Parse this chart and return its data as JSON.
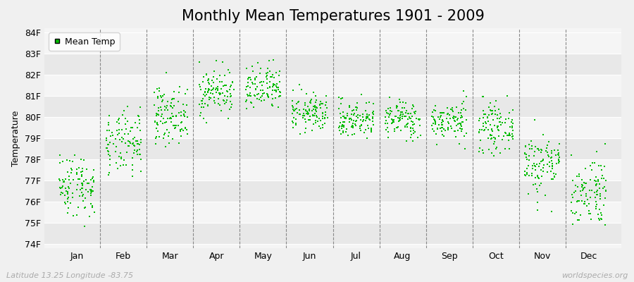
{
  "title": "Monthly Mean Temperatures 1901 - 2009",
  "ylabel": "Temperature",
  "xlabel": "",
  "ytick_labels": [
    "74F",
    "75F",
    "76F",
    "77F",
    "78F",
    "79F",
    "80F",
    "81F",
    "82F",
    "83F",
    "84F"
  ],
  "ytick_values": [
    74,
    75,
    76,
    77,
    78,
    79,
    80,
    81,
    82,
    83,
    84
  ],
  "ylim": [
    73.8,
    84.2
  ],
  "months": [
    "Jan",
    "Feb",
    "Mar",
    "Apr",
    "May",
    "Jun",
    "Jul",
    "Aug",
    "Sep",
    "Oct",
    "Nov",
    "Dec"
  ],
  "month_positions": [
    1,
    2,
    3,
    4,
    5,
    6,
    7,
    8,
    9,
    10,
    11,
    12
  ],
  "xlim": [
    0.3,
    12.7
  ],
  "dot_color": "#00bb00",
  "dot_size": 3,
  "bg_color": "#f0f0f0",
  "plot_bg_light": "#f5f5f5",
  "plot_bg_dark": "#e8e8e8",
  "dashed_line_color": "#888888",
  "legend_label": "Mean Temp",
  "footer_left": "Latitude 13.25 Longitude -83.75",
  "footer_right": "worldspecies.org",
  "title_fontsize": 15,
  "axis_fontsize": 9,
  "footer_fontsize": 8,
  "seed": 42,
  "n_years": 109,
  "monthly_means": [
    76.8,
    78.7,
    80.1,
    81.2,
    81.3,
    80.2,
    79.9,
    79.9,
    79.8,
    79.5,
    77.8,
    76.5
  ],
  "monthly_stds": [
    0.75,
    0.75,
    0.65,
    0.55,
    0.55,
    0.45,
    0.45,
    0.45,
    0.45,
    0.55,
    0.75,
    0.85
  ]
}
